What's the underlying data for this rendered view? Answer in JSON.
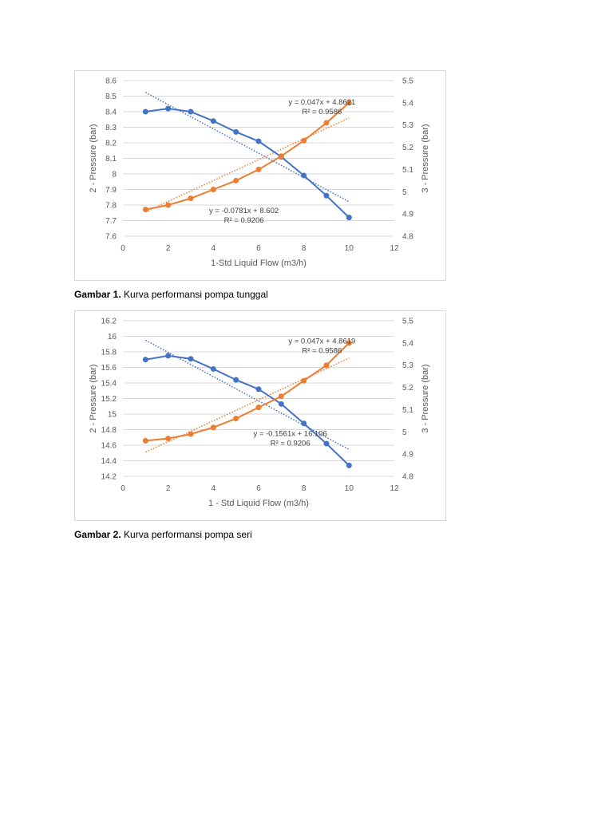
{
  "captions": [
    {
      "label": "Gambar 1.",
      "text": " Kurva performansi pompa tunggal"
    },
    {
      "label": "Gambar 2.",
      "text": " Kurva performansi pompa seri"
    }
  ],
  "colors": {
    "series_left": "#4472c4",
    "series_right": "#ed7d31",
    "grid": "#d9d9d9",
    "axis_text": "#595959"
  },
  "chart_data": [
    {
      "type": "line",
      "xlabel": "1-Std Liquid Flow (m3/h)",
      "ylabel": "2 - Pressure (bar)",
      "y2label": "3 - Pressure (bar)",
      "xlim": [
        0,
        12
      ],
      "xticks": [
        0,
        2,
        4,
        6,
        8,
        10,
        12
      ],
      "ylim": [
        7.6,
        8.6
      ],
      "yticks": [
        7.6,
        7.7,
        7.8,
        7.9,
        8,
        8.1,
        8.2,
        8.3,
        8.4,
        8.5,
        8.6
      ],
      "y2lim": [
        4.8,
        5.5
      ],
      "y2ticks": [
        4.8,
        4.9,
        5,
        5.1,
        5.2,
        5.3,
        5.4,
        5.5
      ],
      "grid": "horizontal",
      "x": [
        1,
        2,
        3,
        4,
        5,
        6,
        7,
        8,
        9,
        10
      ],
      "series": [
        {
          "axis": "left",
          "values": [
            8.4,
            8.42,
            8.4,
            8.34,
            8.27,
            8.21,
            8.11,
            7.99,
            7.86,
            7.72
          ],
          "trendline": {
            "slope": -0.0781,
            "intercept": 8.602
          }
        },
        {
          "axis": "right",
          "values": [
            4.92,
            4.94,
            4.97,
            5.01,
            5.05,
            5.1,
            5.16,
            5.23,
            5.31,
            5.4
          ],
          "trendline": {
            "slope": 0.047,
            "intercept": 4.8621
          }
        }
      ],
      "annotations": [
        {
          "eq": "y = 0.047x + 4.8621",
          "r2": "R² = 0.9586",
          "x": 8.8,
          "y": 8.445
        },
        {
          "eq": "y = -0.0781x + 8.602",
          "r2": "R² = 0.9206",
          "x": 5.35,
          "y": 7.75
        }
      ]
    },
    {
      "type": "line",
      "xlabel": "1 - Std Liquid Flow (m3/h)",
      "ylabel": "2 - Pressure (bar)",
      "y2label": "3 - Pressure (bar)",
      "xlim": [
        0,
        12
      ],
      "xticks": [
        0,
        2,
        4,
        6,
        8,
        10,
        12
      ],
      "ylim": [
        14.2,
        16.2
      ],
      "yticks": [
        14.2,
        14.4,
        14.6,
        14.8,
        15,
        15.2,
        15.4,
        15.6,
        15.8,
        16,
        16.2
      ],
      "y2lim": [
        4.8,
        5.5
      ],
      "y2ticks": [
        4.8,
        4.9,
        5,
        5.1,
        5.2,
        5.3,
        5.4,
        5.5
      ],
      "grid": "horizontal",
      "x": [
        1,
        2,
        3,
        4,
        5,
        6,
        7,
        8,
        9,
        10
      ],
      "series": [
        {
          "axis": "left",
          "values": [
            15.7,
            15.75,
            15.71,
            15.58,
            15.44,
            15.32,
            15.13,
            14.88,
            14.62,
            14.34
          ],
          "trendline": {
            "slope": -0.1561,
            "intercept": 16.106
          }
        },
        {
          "axis": "right",
          "values": [
            4.96,
            4.97,
            4.99,
            5.02,
            5.06,
            5.11,
            5.16,
            5.23,
            5.3,
            5.4
          ],
          "trendline": {
            "slope": 0.047,
            "intercept": 4.8619
          }
        }
      ],
      "annotations": [
        {
          "eq": "y = 0.047x + 4.8619",
          "r2": "R² = 0.9586",
          "x": 8.8,
          "y": 15.91
        },
        {
          "eq": "y = -0.1561x + 16.106",
          "r2": "R² = 0.9206",
          "x": 7.4,
          "y": 14.72
        }
      ]
    }
  ]
}
